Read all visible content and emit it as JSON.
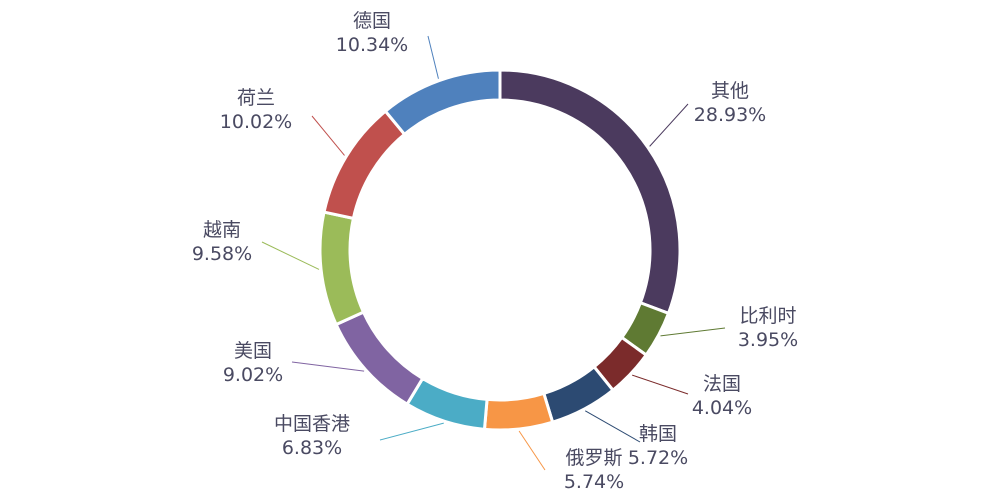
{
  "chart_data": {
    "type": "pie",
    "title": "",
    "slices": [
      {
        "name": "其他",
        "value": 28.93,
        "label": "28.93%",
        "color": "#4b3a5e"
      },
      {
        "name": "比利时",
        "value": 3.95,
        "label": "3.95%",
        "color": "#5f7a33"
      },
      {
        "name": "法国",
        "value": 4.04,
        "label": "4.04%",
        "color": "#7b2b2b"
      },
      {
        "name": "韩国",
        "value": 5.72,
        "label": "5.72%",
        "color": "#2c4a72"
      },
      {
        "name": "俄罗斯",
        "value": 5.74,
        "label": "5.74%",
        "color": "#f79646"
      },
      {
        "name": "中国香港",
        "value": 6.83,
        "label": "6.83%",
        "color": "#4bacc6"
      },
      {
        "name": "美国",
        "value": 9.02,
        "label": "9.02%",
        "color": "#8064a2"
      },
      {
        "name": "越南",
        "value": 9.58,
        "label": "9.58%",
        "color": "#9bbb59"
      },
      {
        "name": "荷兰",
        "value": 10.02,
        "label": "10.02%",
        "color": "#c0504d"
      },
      {
        "name": "德国",
        "value": 10.34,
        "label": "10.34%",
        "color": "#4f81bd"
      }
    ]
  }
}
